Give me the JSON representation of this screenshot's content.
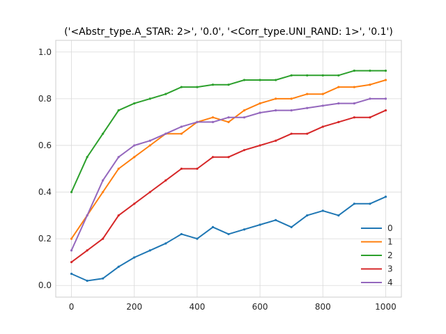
{
  "chart_data": {
    "type": "line",
    "title": "('<Abstr_type.A_STAR: 2>', '0.0', '<Corr_type.UNI_RAND: 1>', '0.1')",
    "xlabel": "",
    "ylabel": "",
    "xlim": [
      -50,
      1050
    ],
    "ylim": [
      -0.05,
      1.05
    ],
    "xticks": [
      0,
      200,
      400,
      600,
      800,
      1000
    ],
    "yticks": [
      0.0,
      0.2,
      0.4,
      0.6,
      0.8,
      1.0
    ],
    "xtick_labels": [
      "0",
      "200",
      "400",
      "600",
      "800",
      "1000"
    ],
    "ytick_labels": [
      "0.0",
      "0.2",
      "0.4",
      "0.6",
      "0.8",
      "1.0"
    ],
    "grid": true,
    "legend_position": "lower-right",
    "series": [
      {
        "name": "0",
        "color": "#1f77b4",
        "x": [
          0,
          50,
          100,
          150,
          200,
          250,
          300,
          350,
          400,
          450,
          500,
          550,
          600,
          650,
          700,
          750,
          800,
          850,
          900,
          950,
          1000
        ],
        "values": [
          0.05,
          0.02,
          0.03,
          0.08,
          0.12,
          0.15,
          0.18,
          0.22,
          0.2,
          0.25,
          0.22,
          0.24,
          0.26,
          0.28,
          0.25,
          0.3,
          0.32,
          0.3,
          0.35,
          0.35,
          0.38
        ]
      },
      {
        "name": "1",
        "color": "#ff7f0e",
        "x": [
          0,
          50,
          100,
          150,
          200,
          250,
          300,
          350,
          400,
          450,
          500,
          550,
          600,
          650,
          700,
          750,
          800,
          850,
          900,
          950,
          1000
        ],
        "values": [
          0.2,
          0.3,
          0.4,
          0.5,
          0.55,
          0.6,
          0.65,
          0.65,
          0.7,
          0.72,
          0.7,
          0.75,
          0.78,
          0.8,
          0.8,
          0.82,
          0.82,
          0.85,
          0.85,
          0.86,
          0.88
        ]
      },
      {
        "name": "2",
        "color": "#2ca02c",
        "x": [
          0,
          50,
          100,
          150,
          200,
          250,
          300,
          350,
          400,
          450,
          500,
          550,
          600,
          650,
          700,
          750,
          800,
          850,
          900,
          950,
          1000
        ],
        "values": [
          0.4,
          0.55,
          0.65,
          0.75,
          0.78,
          0.8,
          0.82,
          0.85,
          0.85,
          0.86,
          0.86,
          0.88,
          0.88,
          0.88,
          0.9,
          0.9,
          0.9,
          0.9,
          0.92,
          0.92,
          0.92
        ]
      },
      {
        "name": "3",
        "color": "#d62728",
        "x": [
          0,
          50,
          100,
          150,
          200,
          250,
          300,
          350,
          400,
          450,
          500,
          550,
          600,
          650,
          700,
          750,
          800,
          850,
          900,
          950,
          1000
        ],
        "values": [
          0.1,
          0.15,
          0.2,
          0.3,
          0.35,
          0.4,
          0.45,
          0.5,
          0.5,
          0.55,
          0.55,
          0.58,
          0.6,
          0.62,
          0.65,
          0.65,
          0.68,
          0.7,
          0.72,
          0.72,
          0.75
        ]
      },
      {
        "name": "4",
        "color": "#9467bd",
        "x": [
          0,
          50,
          100,
          150,
          200,
          250,
          300,
          350,
          400,
          450,
          500,
          550,
          600,
          650,
          700,
          750,
          800,
          850,
          900,
          950,
          1000
        ],
        "values": [
          0.15,
          0.3,
          0.45,
          0.55,
          0.6,
          0.62,
          0.65,
          0.68,
          0.7,
          0.7,
          0.72,
          0.72,
          0.74,
          0.75,
          0.75,
          0.76,
          0.77,
          0.78,
          0.78,
          0.8,
          0.8
        ]
      }
    ]
  },
  "style": {
    "axes_edge_color": "#cccccc",
    "grid_color": "#d9d9d9",
    "background": "#ffffff"
  }
}
